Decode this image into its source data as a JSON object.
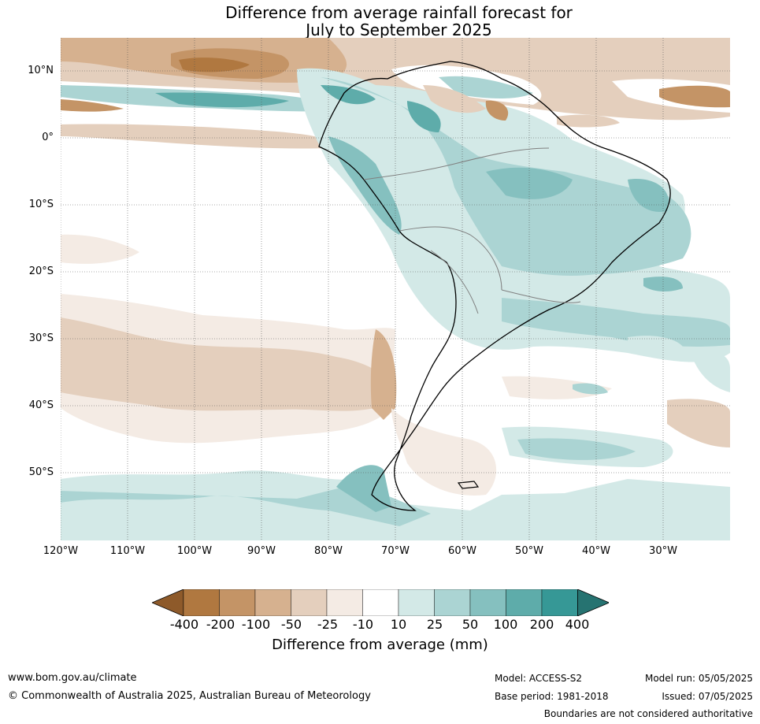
{
  "title": {
    "line1": "Difference from average rainfall forecast for",
    "line2": "July to September 2025"
  },
  "axes": {
    "lat_labels": [
      "10°N",
      "0°",
      "10°S",
      "20°S",
      "30°S",
      "40°S",
      "50°S"
    ],
    "lon_labels": [
      "120°W",
      "110°W",
      "100°W",
      "90°W",
      "80°W",
      "70°W",
      "60°W",
      "50°W",
      "40°W",
      "30°W"
    ]
  },
  "legend": {
    "ticks": [
      "-400",
      "-200",
      "-100",
      "-50",
      "-25",
      "-10",
      "10",
      "25",
      "50",
      "100",
      "200",
      "400"
    ],
    "label": "Difference from average (mm)",
    "colors": [
      "#8e5a2a",
      "#b07840",
      "#c49466",
      "#d6b18f",
      "#e4cfbd",
      "#f4ebe4",
      "#ffffff",
      "#d3e9e7",
      "#abd4d3",
      "#85c0bf",
      "#5eacaa",
      "#369896",
      "#267371"
    ]
  },
  "footer": {
    "website": "www.bom.gov.au/climate",
    "copyright": "© Commonwealth of Australia 2025, Australian Bureau of Meteorology",
    "model": "Model: ACCESS-S2",
    "base_period": "Base period: 1981-2018",
    "model_run": "Model run: 05/05/2025",
    "issued": "Issued: 07/05/2025",
    "disclaimer": "Boundaries are not considered authoritative"
  }
}
